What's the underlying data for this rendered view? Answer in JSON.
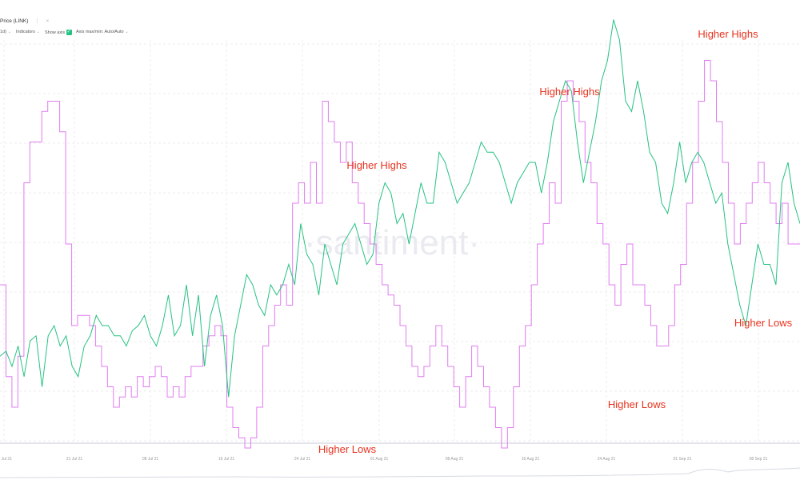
{
  "toolbar": {
    "title": "Price (LINK)",
    "title_menu": "⋮",
    "title_close": "×",
    "interval": "1d",
    "indicators": "Indicators",
    "show_axis": "Show axis",
    "axis_minmax": "Axis max/min: Auto/Auto",
    "dropdown_glyph": "⌄",
    "check_glyph": "✓"
  },
  "watermark": "·santiment·",
  "colors": {
    "price": "#26c281",
    "indicator": "#e07cf0",
    "annotation": "#e8321e",
    "grid": "#ececec"
  },
  "chart_data": {
    "type": "line",
    "x_ticks": [
      "11 Jul 21",
      "21 Jul 21",
      "08 Jul 21",
      "16 Jul 21",
      "24 Jul 21",
      "01 Aug 21",
      "08 Aug 21",
      "16 Aug 21",
      "24 Aug 21",
      "01 Sep 21",
      "08 Sep 21"
    ],
    "series": [
      {
        "values": [
          450,
          455,
          440,
          460,
          430,
          465,
          470,
          420,
          470,
          480,
          460,
          470,
          440,
          430,
          460,
          470,
          490,
          480,
          480,
          470,
          470,
          460,
          475,
          480,
          490,
          470,
          460,
          480,
          510,
          470,
          480,
          520,
          470,
          510,
          440,
          490,
          510,
          480,
          410,
          470,
          500,
          530,
          520,
          500,
          490,
          520,
          510,
          520,
          540,
          520,
          580,
          550,
          540,
          510,
          560,
          540,
          520,
          560,
          570,
          580,
          560,
          540,
          550,
          600,
          620,
          610,
          580,
          590,
          560,
          590,
          620,
          600,
          600,
          650,
          640,
          620,
          600,
          610,
          620,
          640,
          660,
          650,
          650,
          640,
          620,
          600,
          620,
          630,
          640,
          640,
          610,
          640,
          680,
          700,
          720,
          710,
          660,
          620,
          650,
          680,
          720,
          740,
          780,
          760,
          700,
          690,
          720,
          690,
          650,
          640,
          600,
          590,
          620,
          660,
          620,
          640,
          650,
          640,
          620,
          600,
          610,
          560,
          530,
          500,
          480,
          520,
          560,
          540,
          540,
          520,
          620,
          640,
          600,
          580
        ]
      },
      {
        "values": [
          520,
          430,
          400,
          450,
          620,
          660,
          660,
          690,
          700,
          700,
          670,
          560,
          480,
          490,
          490,
          480,
          460,
          440,
          420,
          400,
          410,
          420,
          410,
          430,
          420,
          430,
          440,
          430,
          410,
          420,
          410,
          430,
          440,
          440,
          460,
          470,
          480,
          470,
          400,
          380,
          370,
          360,
          370,
          400,
          460,
          480,
          500,
          520,
          500,
          600,
          620,
          600,
          640,
          600,
          700,
          680,
          660,
          640,
          660,
          620,
          600,
          580,
          560,
          540,
          520,
          510,
          500,
          480,
          460,
          440,
          430,
          440,
          460,
          480,
          460,
          440,
          420,
          400,
          430,
          460,
          440,
          420,
          400,
          380,
          360,
          380,
          420,
          460,
          480,
          520,
          560,
          580,
          620,
          600,
          700,
          720,
          700,
          680,
          640,
          620,
          580,
          560,
          520,
          500,
          540,
          560,
          520,
          520,
          500,
          480,
          460,
          460,
          480,
          520,
          540,
          600,
          640,
          700,
          740,
          720,
          680,
          640,
          600,
          560,
          580,
          600,
          620,
          640,
          620,
          600,
          580,
          600,
          560,
          560
        ]
      }
    ],
    "annotations": [
      {
        "label": "Higher Highs"
      },
      {
        "label": "Higher Highs"
      },
      {
        "label": "Higher Highs"
      },
      {
        "label": "Higher Lows"
      },
      {
        "label": "Higher Lows"
      },
      {
        "label": "Higher Lows"
      }
    ]
  }
}
